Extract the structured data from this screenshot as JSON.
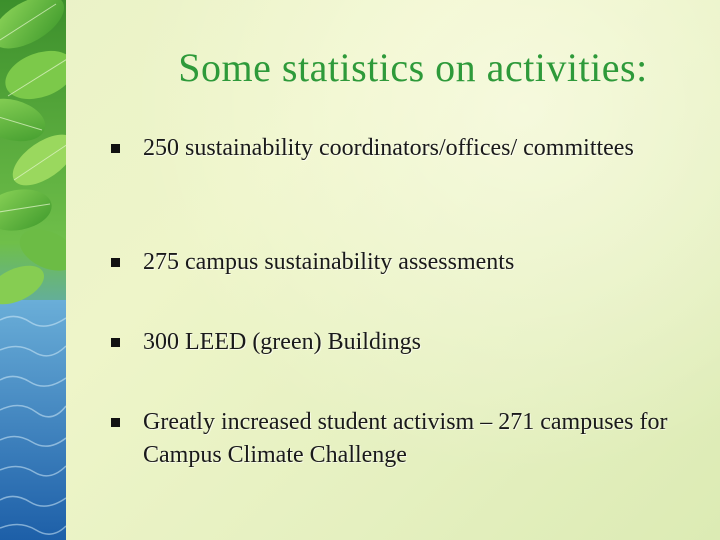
{
  "slide": {
    "title": "Some statistics on activities:",
    "bullets": [
      {
        "text": "250 sustainability coordinators/offices/ committees"
      },
      {
        "text": " 275 campus sustainability assessments"
      },
      {
        "text": " 300 LEED (green) Buildings"
      },
      {
        "text": " Greatly increased student activism – 271 campuses for Campus Climate Challenge"
      }
    ]
  },
  "colors": {
    "title": "#2e9a3a",
    "text": "#1a1a1a",
    "background": "#eaf2c8",
    "leaf": "#4fae3a",
    "water": "#2f7fc4"
  },
  "icons": {
    "bullet": "square-bullet-icon",
    "decoration": "leaves-and-water-image"
  }
}
